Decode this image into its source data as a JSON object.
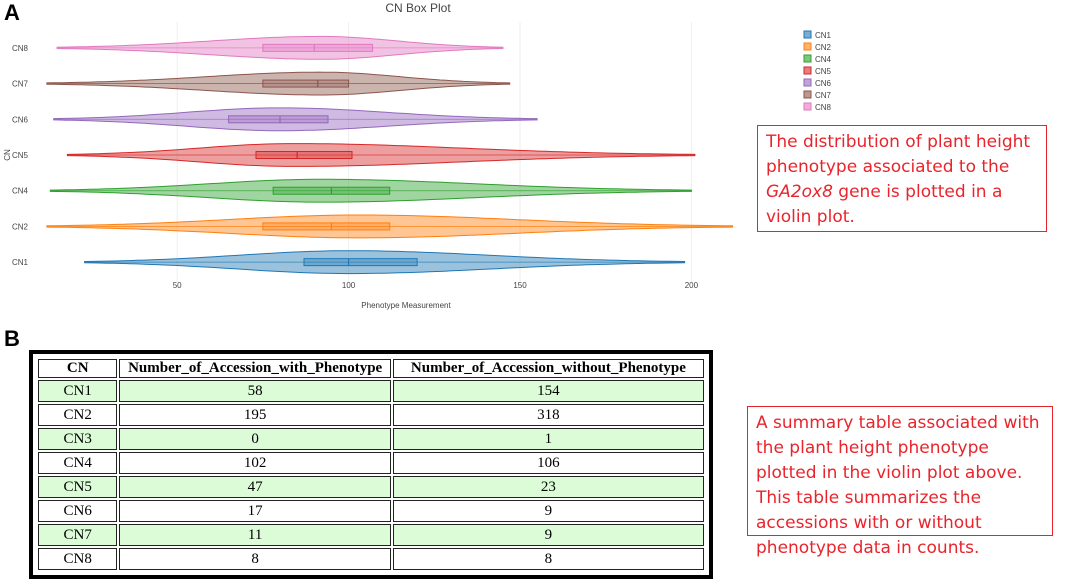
{
  "panels": {
    "a": "A",
    "b": "B"
  },
  "callouts": {
    "top_pre": "The distribution of plant height phenotype associated to the ",
    "top_gene": "GA2ox8",
    "top_post": " gene is plotted in a violin plot.",
    "bottom": "A summary table associated with the plant height phenotype plotted in the violin plot above. This table summarizes the accessions with or without phenotype data in counts."
  },
  "colors": {
    "callout": "#e8242c",
    "table_alt_row": "#dcfcd8"
  },
  "chart_data": {
    "type": "violin",
    "title": "CN Box Plot",
    "xlabel": "Phenotype Measurement",
    "ylabel": "CN",
    "xlim": [
      10,
      220
    ],
    "xticks": [
      50,
      100,
      150,
      200
    ],
    "orientation": "horizontal",
    "grid": true,
    "legend_position": "top-right",
    "categories": [
      "CN1",
      "CN2",
      "CN4",
      "CN5",
      "CN6",
      "CN7",
      "CN8"
    ],
    "series": [
      {
        "name": "CN1",
        "color": "#1f77b4",
        "min": 23,
        "q1": 87,
        "median": 100,
        "q3": 120,
        "max": 198,
        "peak": 100,
        "width": 0.5
      },
      {
        "name": "CN2",
        "color": "#ff7f0e",
        "min": 12,
        "q1": 75,
        "median": 95,
        "q3": 112,
        "max": 212,
        "peak": 103,
        "width": 0.5
      },
      {
        "name": "CN4",
        "color": "#2ca02c",
        "min": 13,
        "q1": 78,
        "median": 95,
        "q3": 112,
        "max": 200,
        "peak": 92,
        "width": 0.5
      },
      {
        "name": "CN5",
        "color": "#d62728",
        "min": 18,
        "q1": 73,
        "median": 85,
        "q3": 101,
        "max": 201,
        "peak": 84,
        "width": 0.5
      },
      {
        "name": "CN6",
        "color": "#9467bd",
        "min": 14,
        "q1": 65,
        "median": 80,
        "q3": 94,
        "max": 155,
        "peak": 80,
        "width": 0.5
      },
      {
        "name": "CN7",
        "color": "#8c564b",
        "min": 12,
        "q1": 75,
        "median": 91,
        "q3": 100,
        "max": 147,
        "peak": 92,
        "width": 0.5
      },
      {
        "name": "CN8",
        "color": "#e377c2",
        "min": 15,
        "q1": 75,
        "median": 90,
        "q3": 107,
        "max": 145,
        "peak": 92,
        "width": 0.5
      }
    ],
    "legend": [
      "CN1",
      "CN2",
      "CN4",
      "CN5",
      "CN6",
      "CN7",
      "CN8"
    ]
  },
  "table": {
    "headers": [
      "CN",
      "Number_of_Accession_with_Phenotype",
      "Number_of_Accession_without_Phenotype"
    ],
    "rows": [
      [
        "CN1",
        "58",
        "154"
      ],
      [
        "CN2",
        "195",
        "318"
      ],
      [
        "CN3",
        "0",
        "1"
      ],
      [
        "CN4",
        "102",
        "106"
      ],
      [
        "CN5",
        "47",
        "23"
      ],
      [
        "CN6",
        "17",
        "9"
      ],
      [
        "CN7",
        "11",
        "9"
      ],
      [
        "CN8",
        "8",
        "8"
      ]
    ]
  }
}
